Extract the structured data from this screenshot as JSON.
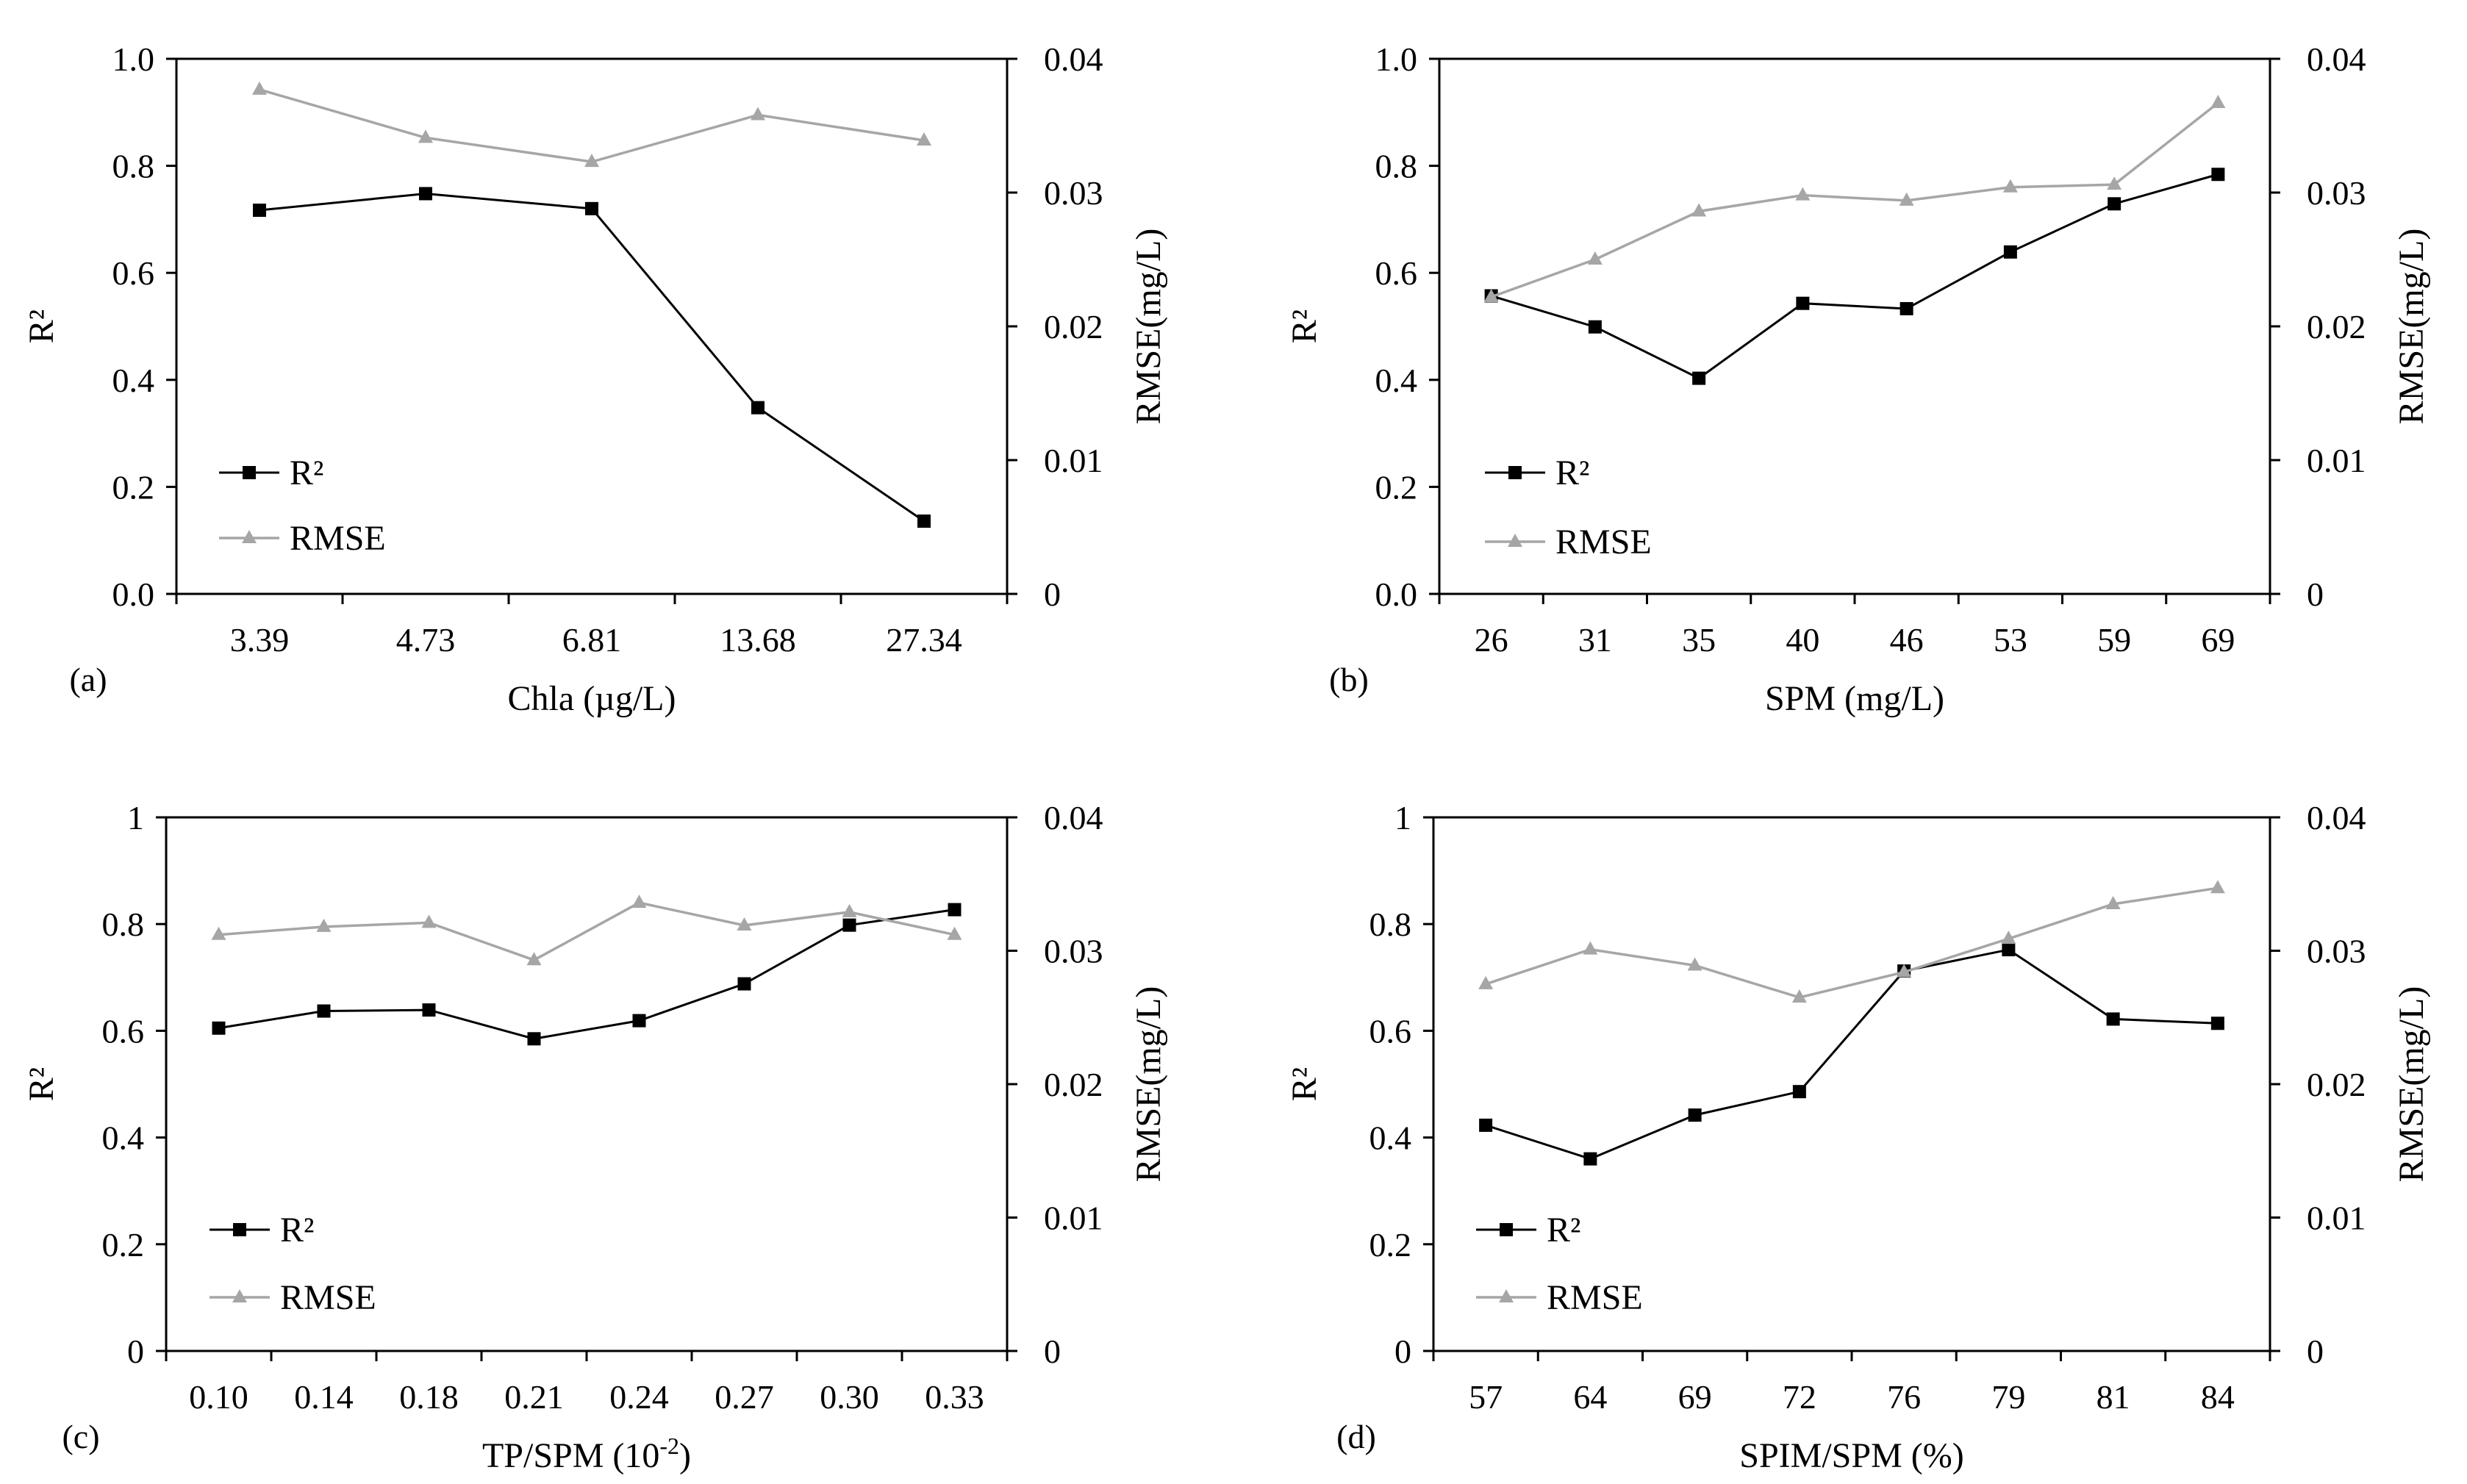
{
  "colors": {
    "r2": "#000000",
    "rmse": "#a6a6a6",
    "axis": "#000000"
  },
  "chart_data": [
    {
      "type": "line",
      "panel_label": "(a)",
      "xlabel": "Chla (µg/L)",
      "ylabel": "R²",
      "y2label": "RMSE(mg/L)",
      "categories": [
        "3.39",
        "4.73",
        "6.81",
        "13.68",
        "27.34"
      ],
      "ylim": [
        0,
        1
      ],
      "yticks": [
        "0.0",
        "0.2",
        "0.4",
        "0.6",
        "0.8",
        "1.0"
      ],
      "y2lim": [
        0,
        0.04
      ],
      "y2ticks": [
        "0",
        "0.01",
        "0.02",
        "0.03",
        "0.04"
      ],
      "series": [
        {
          "name": "R²",
          "axis": "left",
          "marker": "square",
          "values": [
            0.717,
            0.748,
            0.72,
            0.348,
            0.136
          ]
        },
        {
          "name": "RMSE",
          "axis": "right",
          "marker": "triangle",
          "values": [
            0.0377,
            0.0341,
            0.0323,
            0.0358,
            0.0339
          ]
        }
      ],
      "legend": [
        "R²",
        "RMSE"
      ]
    },
    {
      "type": "line",
      "panel_label": "(b)",
      "xlabel": "SPM (mg/L)",
      "ylabel": "R²",
      "y2label": "RMSE(mg/L)",
      "categories": [
        "26",
        "31",
        "35",
        "40",
        "46",
        "53",
        "59",
        "69"
      ],
      "ylim": [
        0,
        1
      ],
      "yticks": [
        "0.0",
        "0.2",
        "0.4",
        "0.6",
        "0.8",
        "1.0"
      ],
      "y2lim": [
        0,
        0.04
      ],
      "y2ticks": [
        "0",
        "0.01",
        "0.02",
        "0.03",
        "0.04"
      ],
      "series": [
        {
          "name": "R²",
          "axis": "left",
          "marker": "square",
          "values": [
            0.557,
            0.499,
            0.403,
            0.543,
            0.533,
            0.639,
            0.729,
            0.784
          ]
        },
        {
          "name": "RMSE",
          "axis": "right",
          "marker": "triangle",
          "values": [
            0.0222,
            0.025,
            0.0286,
            0.0298,
            0.0294,
            0.0304,
            0.0306,
            0.0367
          ]
        }
      ],
      "legend": [
        "R²",
        "RMSE"
      ]
    },
    {
      "type": "line",
      "panel_label": "(c)",
      "xlabel": "TP/SPM (10",
      "xlabel_sup": "-2",
      "xlabel_end": ")",
      "ylabel": "R²",
      "y2label": "RMSE(mg/L)",
      "categories": [
        "0.10",
        "0.14",
        "0.18",
        "0.21",
        "0.24",
        "0.27",
        "0.30",
        "0.33"
      ],
      "ylim": [
        0,
        1
      ],
      "yticks": [
        "0",
        "0.2",
        "0.4",
        "0.6",
        "0.8",
        "1"
      ],
      "y2lim": [
        0,
        0.04
      ],
      "y2ticks": [
        "0",
        "0.01",
        "0.02",
        "0.03",
        "0.04"
      ],
      "series": [
        {
          "name": "R²",
          "axis": "left",
          "marker": "square",
          "values": [
            0.605,
            0.637,
            0.639,
            0.585,
            0.619,
            0.688,
            0.798,
            0.827
          ]
        },
        {
          "name": "RMSE",
          "axis": "right",
          "marker": "triangle",
          "values": [
            0.0312,
            0.0318,
            0.0321,
            0.0293,
            0.0336,
            0.0319,
            0.0329,
            0.0312
          ]
        }
      ],
      "legend": [
        "R²",
        "RMSE"
      ]
    },
    {
      "type": "line",
      "panel_label": "(d)",
      "xlabel": "SPIM/SPM (%)",
      "ylabel": "R²",
      "y2label": "RMSE(mg/L)",
      "categories": [
        "57",
        "64",
        "69",
        "72",
        "76",
        "79",
        "81",
        "84"
      ],
      "ylim": [
        0,
        1
      ],
      "yticks": [
        "0",
        "0.2",
        "0.4",
        "0.6",
        "0.8",
        "1"
      ],
      "y2lim": [
        0,
        0.04
      ],
      "y2ticks": [
        "0",
        "0.01",
        "0.02",
        "0.03",
        "0.04"
      ],
      "series": [
        {
          "name": "R²",
          "axis": "left",
          "marker": "square",
          "values": [
            0.423,
            0.36,
            0.442,
            0.486,
            0.712,
            0.752,
            0.622,
            0.614
          ]
        },
        {
          "name": "RMSE",
          "axis": "right",
          "marker": "triangle",
          "values": [
            0.0275,
            0.0301,
            0.0289,
            0.0265,
            0.0284,
            0.0309,
            0.0335,
            0.0347
          ]
        }
      ],
      "legend": [
        "R²",
        "RMSE"
      ]
    }
  ]
}
